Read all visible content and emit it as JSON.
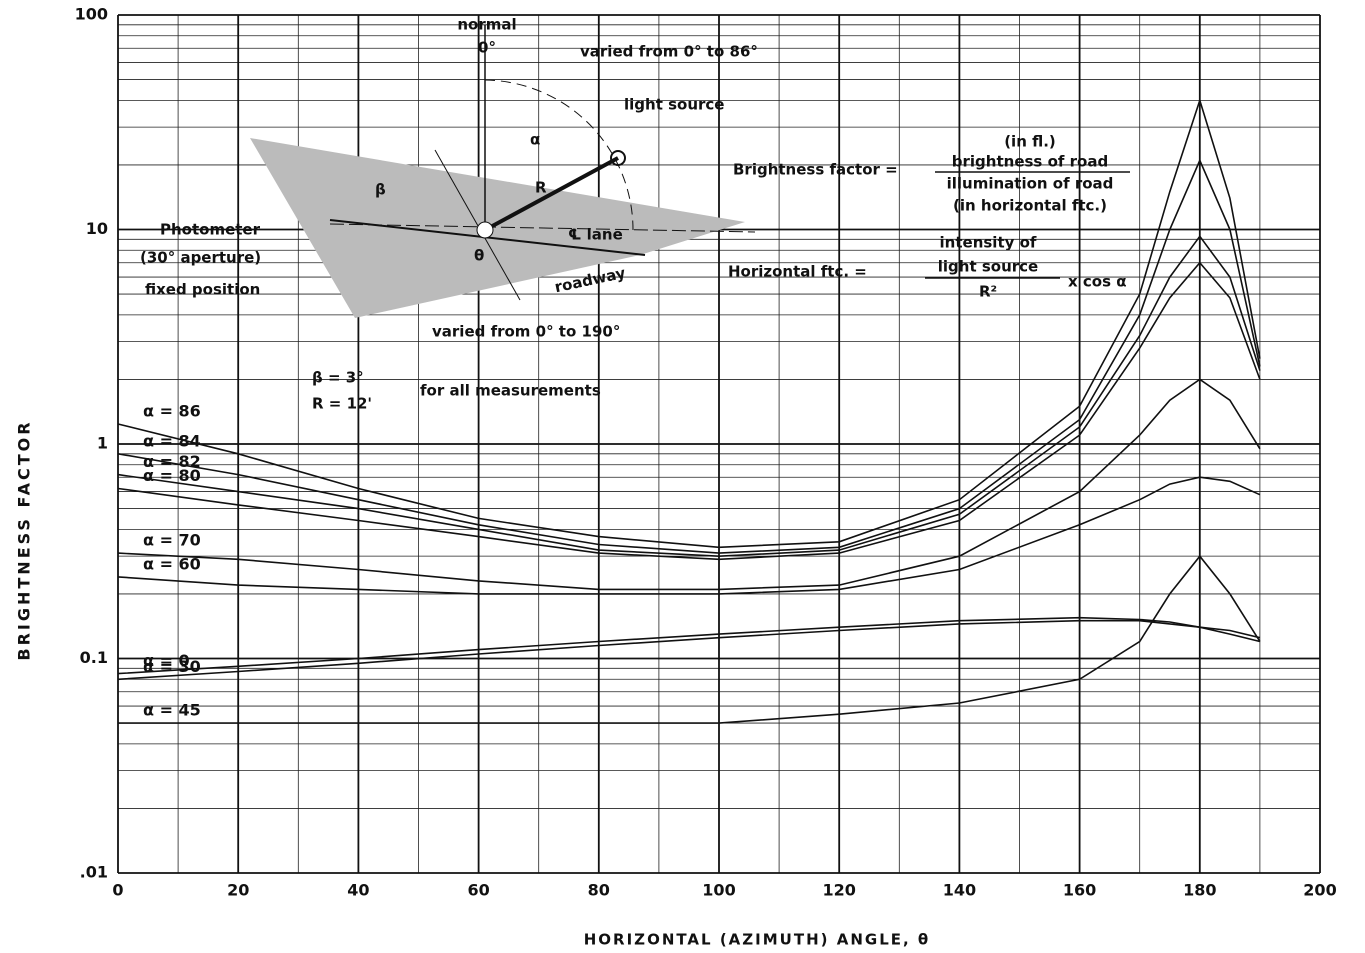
{
  "chart_data": {
    "type": "line",
    "y_label": "BRIGHTNESS FACTOR",
    "x_label": "HORIZONTAL (AZIMUTH) ANGLE, θ",
    "log_y": true,
    "grid": true,
    "xlim": [
      0,
      200
    ],
    "xticks": [
      0,
      20,
      40,
      60,
      80,
      100,
      120,
      140,
      160,
      180,
      200
    ],
    "ylim": [
      0.01,
      100
    ],
    "yticks": [
      {
        "value": 0.01,
        "label": ".01"
      },
      0.1,
      1,
      10,
      100
    ],
    "x": [
      0,
      20,
      40,
      60,
      80,
      100,
      120,
      140,
      160,
      170,
      175,
      180,
      185,
      190
    ],
    "series": [
      {
        "name": "α = 86",
        "color": "#111111",
        "values": [
          1.24,
          0.9,
          0.62,
          0.45,
          0.37,
          0.33,
          0.35,
          0.55,
          1.5,
          5,
          15,
          40,
          14,
          2.5
        ]
      },
      {
        "name": "α = 84",
        "color": "#111111",
        "values": [
          0.9,
          0.72,
          0.55,
          0.42,
          0.34,
          0.31,
          0.33,
          0.5,
          1.3,
          4,
          10,
          21,
          10,
          2.3
        ]
      },
      {
        "name": "α = 82",
        "color": "#111111",
        "values": [
          0.72,
          0.6,
          0.5,
          0.4,
          0.32,
          0.3,
          0.32,
          0.47,
          1.2,
          3.2,
          6,
          9.3,
          6,
          2.2
        ]
      },
      {
        "name": "α = 80",
        "color": "#111111",
        "values": [
          0.62,
          0.52,
          0.44,
          0.37,
          0.31,
          0.29,
          0.31,
          0.44,
          1.1,
          2.8,
          4.8,
          7,
          4.8,
          2.0
        ]
      },
      {
        "name": "α = 70",
        "color": "#111111",
        "values": [
          0.31,
          0.29,
          0.26,
          0.23,
          0.21,
          0.21,
          0.22,
          0.3,
          0.6,
          1.1,
          1.6,
          2,
          1.6,
          0.95
        ]
      },
      {
        "name": "α = 60",
        "color": "#111111",
        "values": [
          0.24,
          0.22,
          0.21,
          0.2,
          0.2,
          0.2,
          0.21,
          0.26,
          0.42,
          0.55,
          0.65,
          0.7,
          0.67,
          0.58
        ]
      },
      {
        "name": "α = 0",
        "color": "#111111",
        "values": [
          0.085,
          0.092,
          0.1,
          0.11,
          0.12,
          0.13,
          0.14,
          0.15,
          0.155,
          0.152,
          0.148,
          0.14,
          0.135,
          0.125
        ]
      },
      {
        "name": "α = 30",
        "color": "#111111",
        "values": [
          0.08,
          0.087,
          0.095,
          0.105,
          0.115,
          0.125,
          0.135,
          0.145,
          0.15,
          0.15,
          0.145,
          0.14,
          0.13,
          0.12
        ]
      },
      {
        "name": "α = 45",
        "color": "#111111",
        "values": [
          0.05,
          0.05,
          0.05,
          0.05,
          0.05,
          0.05,
          0.055,
          0.062,
          0.08,
          0.12,
          0.2,
          0.3,
          0.2,
          0.12
        ]
      }
    ],
    "annotations": {
      "normal": "normal",
      "zero": "0°",
      "alpha_range": "varied from 0° to 86°",
      "light_source": "light source",
      "photometer": "Photometer",
      "aperture": "(30° aperture)",
      "fixed": "fixed position",
      "roadway": "roadway",
      "theta_range": "varied from 0° to 190°",
      "lane": "℄ lane",
      "alpha": "α",
      "beta": "β",
      "r": "R",
      "theta": "θ",
      "beta_value": "β = 3°",
      "r_value": "R = 12'",
      "all": "for all measurements",
      "bf_label": "Brightness factor =",
      "bf_unit_top": "(in fl.)",
      "bf_num": "brightness of road",
      "bf_den": "illumination of road",
      "bf_unit_bottom": "(in horizontal ftc.)",
      "hf_label": "Horizontal ftc. =",
      "hf_num1": "intensity of",
      "hf_num2": "light source",
      "hf_den": "R²",
      "hf_cos": "x cos α"
    }
  }
}
